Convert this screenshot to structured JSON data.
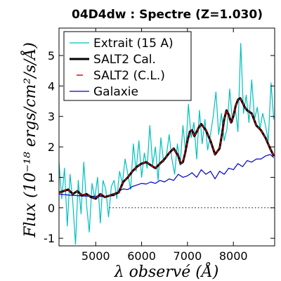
{
  "chart_data": {
    "type": "line",
    "title": "04D4dw : Spectre (Z=1.030)",
    "xlabel": "λ observé (Å)",
    "ylabel": "Flux (10⁻¹⁸ ergs/cm²/s/Å)",
    "xlim": [
      4200,
      8900
    ],
    "ylim": [
      -1.25,
      5.9
    ],
    "xticks": [
      5000,
      6000,
      7000,
      8000
    ],
    "yticks": [
      -1,
      0,
      1,
      2,
      3,
      4,
      5
    ],
    "zero_line": "dotted",
    "legend_position": "top-left",
    "series": [
      {
        "name": "Extrait (15 A)",
        "color": "#00bfbf",
        "style": "thin",
        "x": [
          4200,
          4260,
          4320,
          4380,
          4440,
          4500,
          4560,
          4620,
          4680,
          4740,
          4800,
          4860,
          4920,
          4980,
          5040,
          5100,
          5160,
          5220,
          5280,
          5340,
          5400,
          5460,
          5520,
          5580,
          5640,
          5700,
          5760,
          5820,
          5880,
          5940,
          6000,
          6060,
          6120,
          6180,
          6240,
          6300,
          6360,
          6420,
          6480,
          6540,
          6600,
          6660,
          6720,
          6780,
          6840,
          6900,
          6960,
          7020,
          7080,
          7140,
          7200,
          7260,
          7320,
          7380,
          7440,
          7500,
          7560,
          7620,
          7680,
          7740,
          7800,
          7860,
          7920,
          7980,
          8040,
          8100,
          8160,
          8220,
          8280,
          8340,
          8400,
          8460,
          8520,
          8580,
          8640,
          8700,
          8760,
          8820,
          8880
        ],
        "values": [
          1.5,
          0.3,
          1.3,
          -0.6,
          1.1,
          0.2,
          -1.2,
          0.9,
          -0.2,
          1.5,
          0.1,
          -0.8,
          0.8,
          0.3,
          1.0,
          -0.5,
          0.9,
          0.6,
          -0.3,
          0.7,
          0.9,
          0.3,
          1.2,
          0.8,
          1.6,
          1.1,
          0.6,
          2.1,
          1.2,
          2.2,
          1.0,
          1.8,
          1.3,
          2.7,
          1.4,
          2.0,
          0.9,
          2.3,
          1.5,
          1.7,
          2.4,
          1.6,
          1.1,
          2.1,
          1.4,
          2.7,
          1.8,
          3.4,
          2.3,
          2.8,
          1.6,
          3.2,
          2.1,
          2.9,
          1.9,
          2.4,
          3.0,
          3.8,
          2.4,
          3.1,
          2.2,
          2.6,
          3.9,
          2.8,
          3.3,
          2.5,
          5.4,
          3.1,
          3.7,
          2.8,
          4.2,
          2.9,
          3.3,
          2.6,
          3.1,
          2.7,
          2.2,
          4.1,
          2.9
        ]
      },
      {
        "name": "SALT2 Cal.",
        "color": "#000000",
        "style": "thick",
        "x": [
          4200,
          4300,
          4400,
          4500,
          4600,
          4700,
          4800,
          4900,
          5000,
          5100,
          5200,
          5300,
          5400,
          5500,
          5600,
          5700,
          5800,
          5900,
          6000,
          6100,
          6200,
          6300,
          6400,
          6500,
          6600,
          6700,
          6800,
          6850,
          6900,
          6950,
          7000,
          7050,
          7100,
          7150,
          7200,
          7250,
          7300,
          7400,
          7500,
          7600,
          7700,
          7750,
          7800,
          7850,
          7900,
          7950,
          8000,
          8050,
          8100,
          8150,
          8200,
          8250,
          8300,
          8400,
          8500,
          8600,
          8700,
          8800,
          8880
        ],
        "values": [
          0.5,
          0.55,
          0.6,
          0.45,
          0.55,
          0.4,
          0.45,
          0.35,
          0.3,
          0.45,
          0.35,
          0.4,
          0.45,
          0.5,
          0.85,
          1.0,
          1.2,
          1.35,
          1.45,
          1.5,
          1.4,
          1.3,
          1.45,
          1.6,
          1.8,
          1.95,
          1.7,
          1.45,
          1.5,
          1.8,
          2.2,
          2.5,
          2.55,
          2.35,
          2.5,
          2.65,
          2.75,
          2.55,
          2.2,
          1.75,
          1.95,
          2.4,
          2.9,
          3.2,
          3.05,
          2.8,
          3.0,
          3.35,
          3.55,
          3.6,
          3.45,
          3.3,
          3.2,
          3.1,
          2.7,
          2.55,
          2.3,
          1.95,
          1.7
        ]
      },
      {
        "name": "SALT2 (C.L.)",
        "color": "#ff0000",
        "style": "dashed",
        "x": [
          4200,
          4300,
          4400,
          4500,
          4600,
          4700,
          4800,
          4900,
          5000,
          5100,
          5200,
          5300,
          5400,
          5500,
          5600,
          5700,
          5800,
          5900,
          6000,
          6100,
          6200,
          6300,
          6400,
          6500,
          6600,
          6700,
          6800,
          6850,
          6900,
          6950,
          7000,
          7050,
          7100,
          7150,
          7200,
          7250,
          7300,
          7400,
          7500,
          7600,
          7700,
          7750,
          7800,
          7850,
          7900,
          7950,
          8000,
          8050,
          8100,
          8150,
          8200,
          8250,
          8300,
          8400,
          8500,
          8600,
          8700,
          8800,
          8880
        ],
        "values": [
          0.5,
          0.55,
          0.6,
          0.45,
          0.55,
          0.4,
          0.45,
          0.35,
          0.3,
          0.45,
          0.35,
          0.4,
          0.45,
          0.5,
          0.85,
          1.0,
          1.2,
          1.35,
          1.45,
          1.5,
          1.4,
          1.3,
          1.45,
          1.6,
          1.8,
          1.95,
          1.7,
          1.45,
          1.5,
          1.8,
          2.2,
          2.5,
          2.55,
          2.35,
          2.5,
          2.65,
          2.75,
          2.55,
          2.2,
          1.75,
          1.95,
          2.4,
          2.9,
          3.2,
          3.05,
          2.8,
          3.0,
          3.35,
          3.55,
          3.6,
          3.45,
          3.3,
          3.2,
          3.1,
          2.7,
          2.55,
          2.3,
          1.95,
          1.7
        ]
      },
      {
        "name": "Galaxie",
        "color": "#0000cc",
        "style": "thin",
        "x": [
          4200,
          4400,
          4600,
          4800,
          5000,
          5200,
          5400,
          5500,
          5600,
          5700,
          5800,
          5900,
          6000,
          6100,
          6200,
          6300,
          6400,
          6500,
          6600,
          6700,
          6800,
          6900,
          7000,
          7100,
          7200,
          7300,
          7400,
          7500,
          7600,
          7700,
          7800,
          7900,
          8000,
          8100,
          8200,
          8300,
          8400,
          8500,
          8600,
          8700,
          8800,
          8880
        ],
        "values": [
          0.45,
          0.42,
          0.4,
          0.38,
          0.38,
          0.37,
          0.4,
          0.55,
          0.62,
          0.6,
          0.7,
          0.75,
          0.8,
          0.78,
          0.85,
          0.8,
          0.9,
          0.85,
          0.95,
          0.9,
          1.1,
          1.0,
          1.05,
          1.15,
          1.0,
          1.25,
          1.1,
          1.2,
          0.95,
          1.2,
          1.1,
          1.3,
          1.25,
          1.45,
          1.35,
          1.55,
          1.5,
          1.6,
          1.6,
          1.7,
          1.75,
          1.65
        ]
      }
    ]
  }
}
